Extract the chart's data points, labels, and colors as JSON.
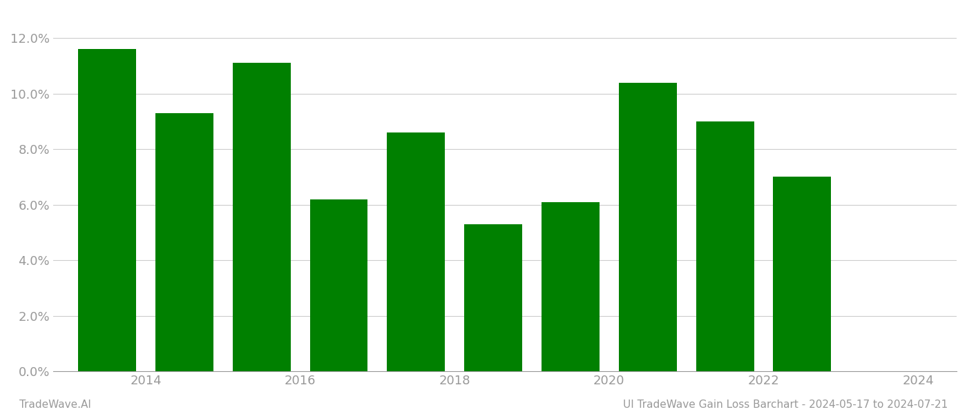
{
  "years": [
    2013.5,
    2014.5,
    2015.5,
    2016.5,
    2017.5,
    2018.5,
    2019.5,
    2020.5,
    2021.5,
    2022.5
  ],
  "values": [
    0.116,
    0.093,
    0.111,
    0.062,
    0.086,
    0.053,
    0.061,
    0.104,
    0.09,
    0.07
  ],
  "bar_color": "#008000",
  "background_color": "#ffffff",
  "ylim": [
    0,
    0.13
  ],
  "yticks": [
    0.0,
    0.02,
    0.04,
    0.06,
    0.08,
    0.1,
    0.12
  ],
  "xticks": [
    2014,
    2016,
    2018,
    2020,
    2022,
    2024
  ],
  "xlim": [
    2012.8,
    2024.5
  ],
  "footer_left": "TradeWave.AI",
  "footer_right": "UI TradeWave Gain Loss Barchart - 2024-05-17 to 2024-07-21",
  "grid_color": "#cccccc",
  "tick_color": "#999999",
  "footer_font_size": 11,
  "bar_width": 0.75
}
